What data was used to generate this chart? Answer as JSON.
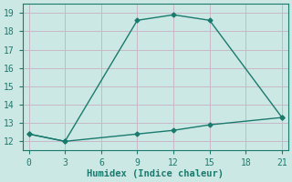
{
  "line1_x": [
    0,
    3,
    9,
    12,
    15,
    21
  ],
  "line1_y": [
    12.4,
    12.0,
    18.6,
    18.9,
    18.6,
    13.3
  ],
  "line2_x": [
    0,
    3,
    9,
    12,
    15,
    21
  ],
  "line2_y": [
    12.4,
    12.0,
    12.4,
    12.6,
    12.9,
    13.3
  ],
  "line_color": "#1a7a6e",
  "bg_color": "#cce8e4",
  "grid_color": "#aacfcb",
  "plot_bg": "#cce8e4",
  "xlabel": "Humidex (Indice chaleur)",
  "xlim": [
    -0.5,
    21.5
  ],
  "ylim": [
    11.5,
    19.5
  ],
  "xticks": [
    0,
    3,
    6,
    9,
    12,
    15,
    18,
    21
  ],
  "yticks": [
    12,
    13,
    14,
    15,
    16,
    17,
    18,
    19
  ],
  "marker": "D",
  "markersize": 2.5,
  "linewidth": 1.0,
  "xlabel_fontsize": 7.5,
  "tick_fontsize": 7
}
